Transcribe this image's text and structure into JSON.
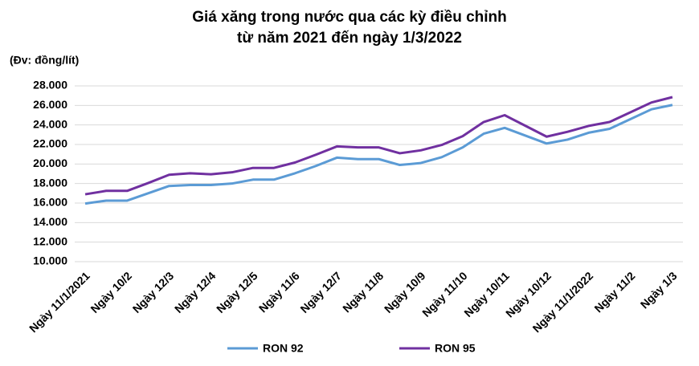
{
  "chart_data": {
    "type": "line",
    "title": [
      "Giá xăng trong nước qua các kỳ điều chỉnh",
      "từ năm 2021 đến ngày 1/3/2022"
    ],
    "subtitle": "(Đv: đồng/lít)",
    "categories": [
      "Ngày 11/1/2021",
      null,
      "Ngày 10/2",
      null,
      "Ngày 12/3",
      null,
      "Ngày 12/4",
      null,
      "Ngày 12/5",
      null,
      "Ngày 11/6",
      null,
      "Ngày 12/7",
      null,
      "Ngày 11/8",
      null,
      "Ngày 10/9",
      null,
      "Ngày 11/10",
      null,
      "Ngày 10/11",
      null,
      "Ngày 10/12",
      null,
      "Ngày 11/1/2022",
      null,
      "Ngày 11/2",
      null,
      "Ngày 1/3"
    ],
    "series": [
      {
        "name": "RON 92",
        "color": "#5b9bd5",
        "values": [
          15950,
          16250,
          16250,
          17000,
          17750,
          17850,
          17850,
          18000,
          18400,
          18400,
          19050,
          19800,
          20650,
          20500,
          20500,
          19900,
          20100,
          20700,
          21700,
          23100,
          23700,
          22900,
          22100,
          22500,
          23200,
          23600,
          24600,
          25600,
          26050
        ]
      },
      {
        "name": "RON 95",
        "color": "#7030a0",
        "values": [
          16900,
          17250,
          17250,
          18050,
          18900,
          19050,
          18950,
          19150,
          19600,
          19600,
          20150,
          20950,
          21800,
          21700,
          21700,
          21100,
          21400,
          21950,
          22850,
          24300,
          25000,
          23900,
          22800,
          23300,
          23900,
          24300,
          25300,
          26300,
          26850
        ]
      }
    ],
    "ylim": [
      10000,
      28000
    ],
    "yticks": [
      {
        "value": 10000,
        "label": "10.000"
      },
      {
        "value": 12000,
        "label": "12.000"
      },
      {
        "value": 14000,
        "label": "14.000"
      },
      {
        "value": 16000,
        "label": "16.000"
      },
      {
        "value": 18000,
        "label": "18.000"
      },
      {
        "value": 20000,
        "label": "20.000"
      },
      {
        "value": 22000,
        "label": "22.000"
      },
      {
        "value": 24000,
        "label": "24.000"
      },
      {
        "value": 26000,
        "label": "26.000"
      },
      {
        "value": 28000,
        "label": "28.000"
      }
    ],
    "grid": true
  }
}
